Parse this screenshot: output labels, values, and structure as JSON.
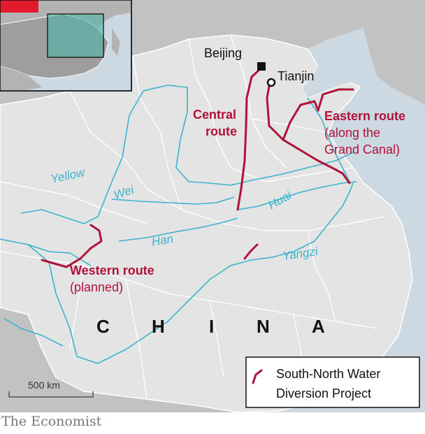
{
  "country_label": [
    "C",
    "H",
    "I",
    "N",
    "A"
  ],
  "cities": {
    "beijing": "Beijing",
    "tianjin": "Tianjin"
  },
  "routes": {
    "central_line1": "Central",
    "central_line2": "route",
    "eastern_line1": "Eastern route",
    "eastern_line2": "(along the",
    "eastern_line3": "Grand Canal)",
    "western_line1": "Western route",
    "western_line2": "(planned)"
  },
  "rivers": {
    "yellow": "Yellow",
    "wei": "Wei",
    "huai": "Huai",
    "han": "Han",
    "yangzi": "Yangzi"
  },
  "legend": {
    "line1": "South-North Water",
    "line2": "Diversion Project"
  },
  "scale_label": "500 km",
  "credit": "The Economist",
  "colors": {
    "route": "#b0123a",
    "river": "#3bb3cc",
    "land": "#e4e4e4",
    "other_land": "#c2c2c2",
    "sea": "#cdd9e2",
    "border": "#ffffff",
    "text": "#111111"
  }
}
